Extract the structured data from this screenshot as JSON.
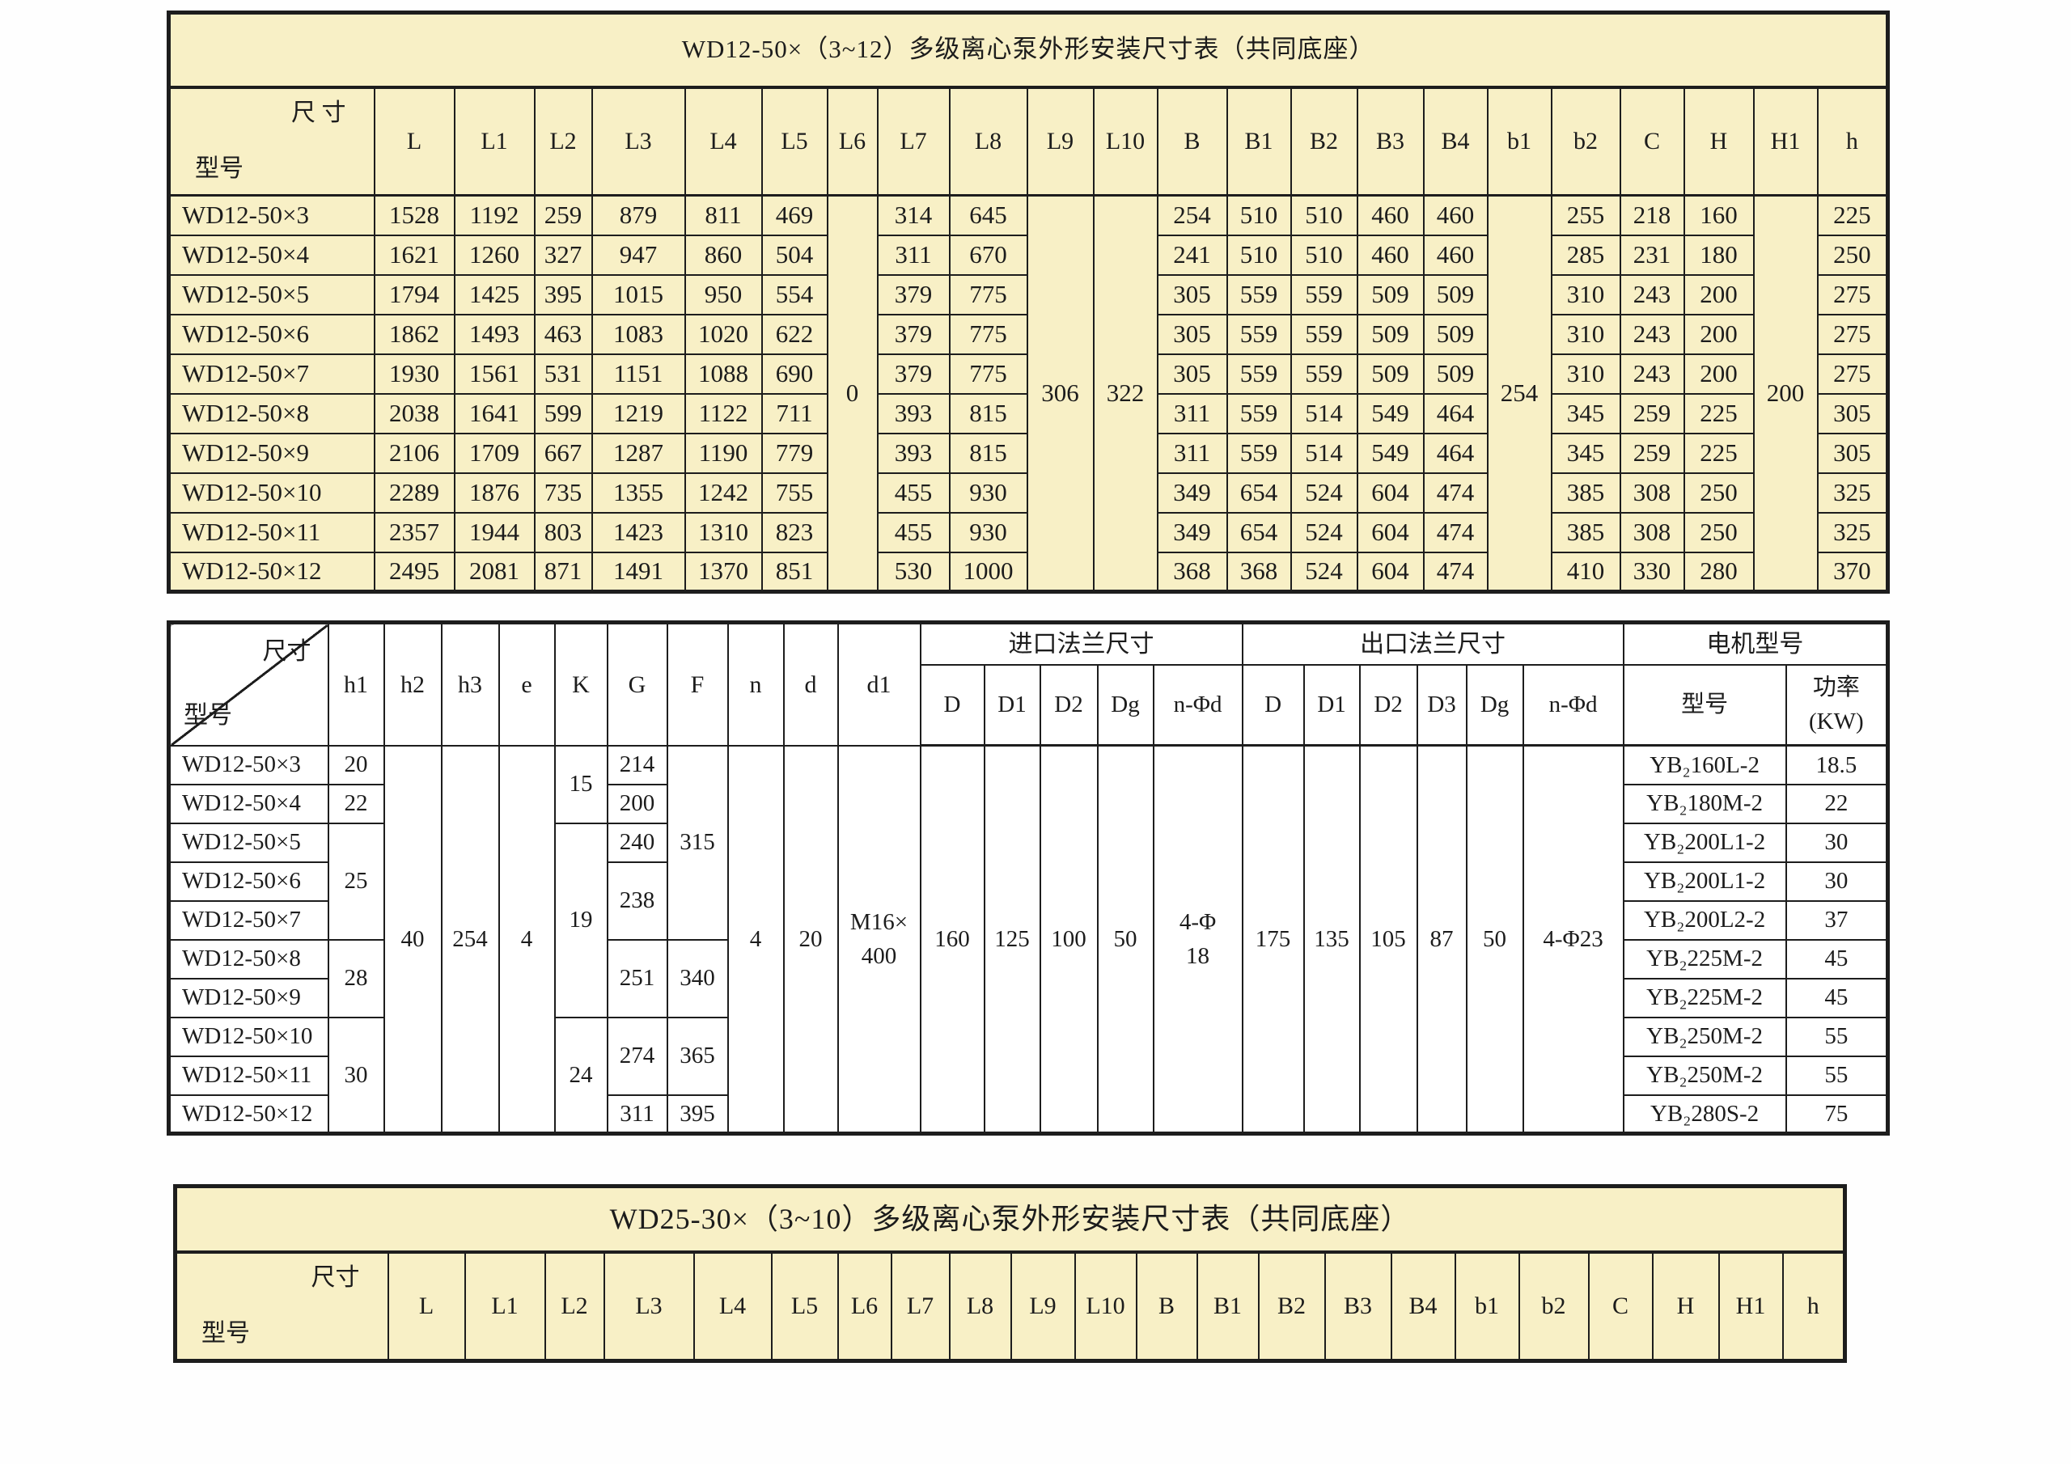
{
  "table1": {
    "title": "WD12-50×（3~12）多级离心泵外形安装尺寸表（共同底座）",
    "corner": {
      "top": "尺 寸",
      "bottom": "型号"
    },
    "headers": [
      "L",
      "L1",
      "L2",
      "L3",
      "L4",
      "L5",
      "L6",
      "L7",
      "L8",
      "L9",
      "L10",
      "B",
      "B1",
      "B2",
      "B3",
      "B4",
      "b1",
      "b2",
      "C",
      "H",
      "H1",
      "h"
    ],
    "rows": [
      [
        "WD12-50×3",
        "1528",
        "1192",
        "259",
        "879",
        "811",
        "469",
        {
          "v": "0",
          "rs": 10
        },
        "314",
        "645",
        {
          "v": "306",
          "rs": 10
        },
        {
          "v": "322",
          "rs": 10
        },
        "254",
        "510",
        "510",
        "460",
        "460",
        {
          "v": "254",
          "rs": 10
        },
        "255",
        "218",
        "160",
        {
          "v": "200",
          "rs": 10
        },
        "225"
      ],
      [
        "WD12-50×4",
        "1621",
        "1260",
        "327",
        "947",
        "860",
        "504",
        "311",
        "670",
        "241",
        "510",
        "510",
        "460",
        "460",
        "285",
        "231",
        "180",
        "250"
      ],
      [
        "WD12-50×5",
        "1794",
        "1425",
        "395",
        "1015",
        "950",
        "554",
        "379",
        "775",
        "305",
        "559",
        "559",
        "509",
        "509",
        "310",
        "243",
        "200",
        "275"
      ],
      [
        "WD12-50×6",
        "1862",
        "1493",
        "463",
        "1083",
        "1020",
        "622",
        "379",
        "775",
        "305",
        "559",
        "559",
        "509",
        "509",
        "310",
        "243",
        "200",
        "275"
      ],
      [
        "WD12-50×7",
        "1930",
        "1561",
        "531",
        "1151",
        "1088",
        "690",
        "379",
        "775",
        "305",
        "559",
        "559",
        "509",
        "509",
        "310",
        "243",
        "200",
        "275"
      ],
      [
        "WD12-50×8",
        "2038",
        "1641",
        "599",
        "1219",
        "1122",
        "711",
        "393",
        "815",
        "311",
        "559",
        "514",
        "549",
        "464",
        "345",
        "259",
        "225",
        "305"
      ],
      [
        "WD12-50×9",
        "2106",
        "1709",
        "667",
        "1287",
        "1190",
        "779",
        "393",
        "815",
        "311",
        "559",
        "514",
        "549",
        "464",
        "345",
        "259",
        "225",
        "305"
      ],
      [
        "WD12-50×10",
        "2289",
        "1876",
        "735",
        "1355",
        "1242",
        "755",
        "455",
        "930",
        "349",
        "654",
        "524",
        "604",
        "474",
        "385",
        "308",
        "250",
        "325"
      ],
      [
        "WD12-50×11",
        "2357",
        "1944",
        "803",
        "1423",
        "1310",
        "823",
        "455",
        "930",
        "349",
        "654",
        "524",
        "604",
        "474",
        "385",
        "308",
        "250",
        "325"
      ],
      [
        "WD12-50×12",
        "2495",
        "2081",
        "871",
        "1491",
        "1370",
        "851",
        "530",
        "1000",
        "368",
        "368",
        "524",
        "604",
        "474",
        "410",
        "330",
        "280",
        "370"
      ]
    ]
  },
  "table2": {
    "corner": {
      "top": "尺寸",
      "bottom": "型号"
    },
    "single_headers": [
      "h1",
      "h2",
      "h3",
      "e",
      "K",
      "G",
      "F",
      "n",
      "d",
      "d1"
    ],
    "groups": [
      {
        "label": "进口法兰尺寸",
        "cols": [
          "D",
          "D1",
          "D2",
          "Dg",
          "n-Φd"
        ]
      },
      {
        "label": "出口法兰尺寸",
        "cols": [
          "D",
          "D1",
          "D2",
          "D3",
          "Dg",
          "n-Φd"
        ]
      },
      {
        "label": "电机型号",
        "cols": [
          "型号",
          "功率\n(KW)"
        ]
      }
    ],
    "rows": [
      [
        "WD12-50×3",
        "20",
        {
          "v": "40",
          "rs": 10
        },
        {
          "v": "254",
          "rs": 10
        },
        {
          "v": "4",
          "rs": 10
        },
        {
          "v": "15",
          "rs": 2
        },
        "214",
        {
          "v": "315",
          "rs": 5
        },
        {
          "v": "4",
          "rs": 10
        },
        {
          "v": "20",
          "rs": 10
        },
        {
          "v": "M16×\n400",
          "rs": 10
        },
        {
          "v": "160",
          "rs": 10
        },
        {
          "v": "125",
          "rs": 10
        },
        {
          "v": "100",
          "rs": 10
        },
        {
          "v": "50",
          "rs": 10
        },
        {
          "v": "4-Φ\n18",
          "rs": 10
        },
        {
          "v": "175",
          "rs": 10
        },
        {
          "v": "135",
          "rs": 10
        },
        {
          "v": "105",
          "rs": 10
        },
        {
          "v": "87",
          "rs": 10
        },
        {
          "v": "50",
          "rs": 10
        },
        {
          "v": "4-Φ23",
          "rs": 10
        },
        "YB₂160L-2",
        "18.5"
      ],
      [
        "WD12-50×4",
        "22",
        "200",
        "YB₂180M-2",
        "22"
      ],
      [
        "WD12-50×5",
        {
          "v": "25",
          "rs": 3
        },
        {
          "v": "19",
          "rs": 5
        },
        "240",
        "YB₂200L1-2",
        "30"
      ],
      [
        "WD12-50×6",
        {
          "v": "238",
          "rs": 2
        },
        "YB₂200L1-2",
        "30"
      ],
      [
        "WD12-50×7",
        "YB₂200L2-2",
        "37"
      ],
      [
        "WD12-50×8",
        {
          "v": "28",
          "rs": 2
        },
        {
          "v": "251",
          "rs": 2
        },
        {
          "v": "340",
          "rs": 2
        },
        "YB₂225M-2",
        "45"
      ],
      [
        "WD12-50×9",
        "YB₂225M-2",
        "45"
      ],
      [
        "WD12-50×10",
        {
          "v": "30",
          "rs": 3
        },
        {
          "v": "24",
          "rs": 3
        },
        {
          "v": "274",
          "rs": 2
        },
        {
          "v": "365",
          "rs": 2
        },
        "YB₂250M-2",
        "55"
      ],
      [
        "WD12-50×11",
        "YB₂250M-2",
        "55"
      ],
      [
        "WD12-50×12",
        "311",
        "395",
        "YB₂280S-2",
        "75"
      ]
    ]
  },
  "table3": {
    "title": "WD25-30×（3~10）多级离心泵外形安装尺寸表（共同底座）",
    "corner": {
      "top": "尺寸",
      "bottom": "型号"
    },
    "headers": [
      "L",
      "L1",
      "L2",
      "L3",
      "L4",
      "L5",
      "L6",
      "L7",
      "L8",
      "L9",
      "L10",
      "B",
      "B1",
      "B2",
      "B3",
      "B4",
      "b1",
      "b2",
      "C",
      "H",
      "H1",
      "h"
    ]
  }
}
